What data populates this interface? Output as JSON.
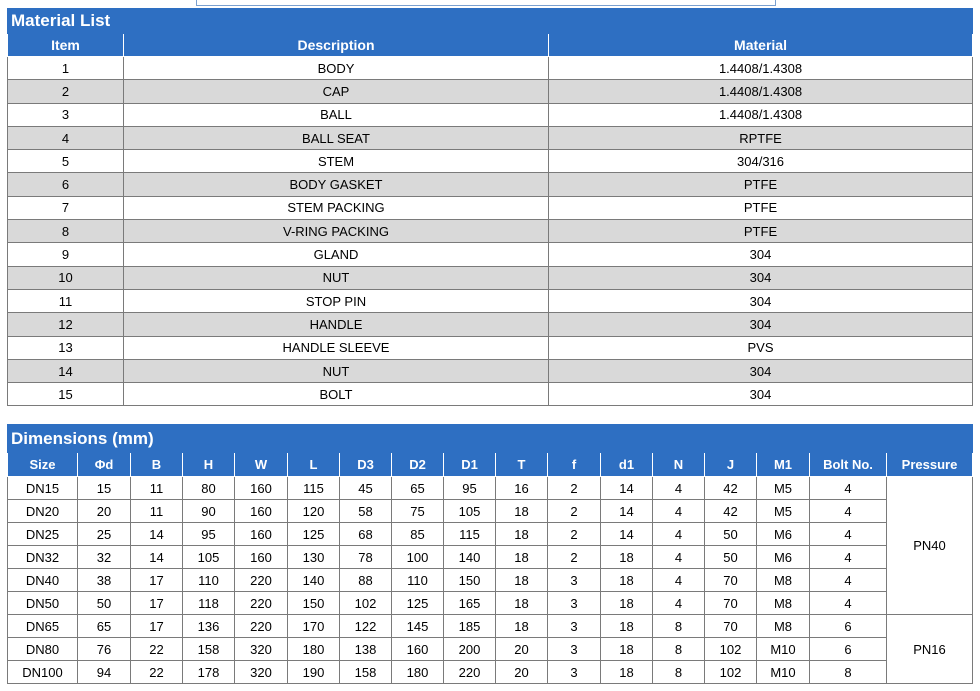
{
  "material_list": {
    "title": "Material List",
    "headers": [
      "Item",
      "Description",
      "Material"
    ],
    "rows": [
      [
        "1",
        "BODY",
        "1.4408/1.4308"
      ],
      [
        "2",
        "CAP",
        "1.4408/1.4308"
      ],
      [
        "3",
        "BALL",
        "1.4408/1.4308"
      ],
      [
        "4",
        "BALL SEAT",
        "RPTFE"
      ],
      [
        "5",
        "STEM",
        "304/316"
      ],
      [
        "6",
        "BODY GASKET",
        "PTFE"
      ],
      [
        "7",
        "STEM PACKING",
        "PTFE"
      ],
      [
        "8",
        "V-RING PACKING",
        "PTFE"
      ],
      [
        "9",
        "GLAND",
        "304"
      ],
      [
        "10",
        "NUT",
        "304"
      ],
      [
        "11",
        "STOP PIN",
        "304"
      ],
      [
        "12",
        "HANDLE",
        "304"
      ],
      [
        "13",
        "HANDLE SLEEVE",
        "PVS"
      ],
      [
        "14",
        "NUT",
        "304"
      ],
      [
        "15",
        "BOLT",
        "304"
      ]
    ]
  },
  "dimensions": {
    "title": "Dimensions (mm)",
    "headers": [
      "Size",
      "Φd",
      "B",
      "H",
      "W",
      "L",
      "D3",
      "D2",
      "D1",
      "T",
      "f",
      "d1",
      "N",
      "J",
      "M1",
      "Bolt No.",
      "Pressure"
    ],
    "rows": [
      [
        "DN15",
        "15",
        "11",
        "80",
        "160",
        "115",
        "45",
        "65",
        "95",
        "16",
        "2",
        "14",
        "4",
        "42",
        "M5",
        "4"
      ],
      [
        "DN20",
        "20",
        "11",
        "90",
        "160",
        "120",
        "58",
        "75",
        "105",
        "18",
        "2",
        "14",
        "4",
        "42",
        "M5",
        "4"
      ],
      [
        "DN25",
        "25",
        "14",
        "95",
        "160",
        "125",
        "68",
        "85",
        "115",
        "18",
        "2",
        "14",
        "4",
        "50",
        "M6",
        "4"
      ],
      [
        "DN32",
        "32",
        "14",
        "105",
        "160",
        "130",
        "78",
        "100",
        "140",
        "18",
        "2",
        "18",
        "4",
        "50",
        "M6",
        "4"
      ],
      [
        "DN40",
        "38",
        "17",
        "110",
        "220",
        "140",
        "88",
        "110",
        "150",
        "18",
        "3",
        "18",
        "4",
        "70",
        "M8",
        "4"
      ],
      [
        "DN50",
        "50",
        "17",
        "118",
        "220",
        "150",
        "102",
        "125",
        "165",
        "18",
        "3",
        "18",
        "4",
        "70",
        "M8",
        "4"
      ],
      [
        "DN65",
        "65",
        "17",
        "136",
        "220",
        "170",
        "122",
        "145",
        "185",
        "18",
        "3",
        "18",
        "8",
        "70",
        "M8",
        "6"
      ],
      [
        "DN80",
        "76",
        "22",
        "158",
        "320",
        "180",
        "138",
        "160",
        "200",
        "20",
        "3",
        "18",
        "8",
        "102",
        "M10",
        "6"
      ],
      [
        "DN100",
        "94",
        "22",
        "178",
        "320",
        "190",
        "158",
        "180",
        "220",
        "20",
        "3",
        "18",
        "8",
        "102",
        "M10",
        "8"
      ]
    ],
    "pressure_groups": [
      {
        "label": "PN40",
        "rows": 6
      },
      {
        "label": "PN16",
        "rows": 3
      }
    ]
  },
  "colors": {
    "header_blue": "#2e6fc2",
    "row_shade": "#d9d9d9",
    "grid": "#7a7a7a"
  }
}
